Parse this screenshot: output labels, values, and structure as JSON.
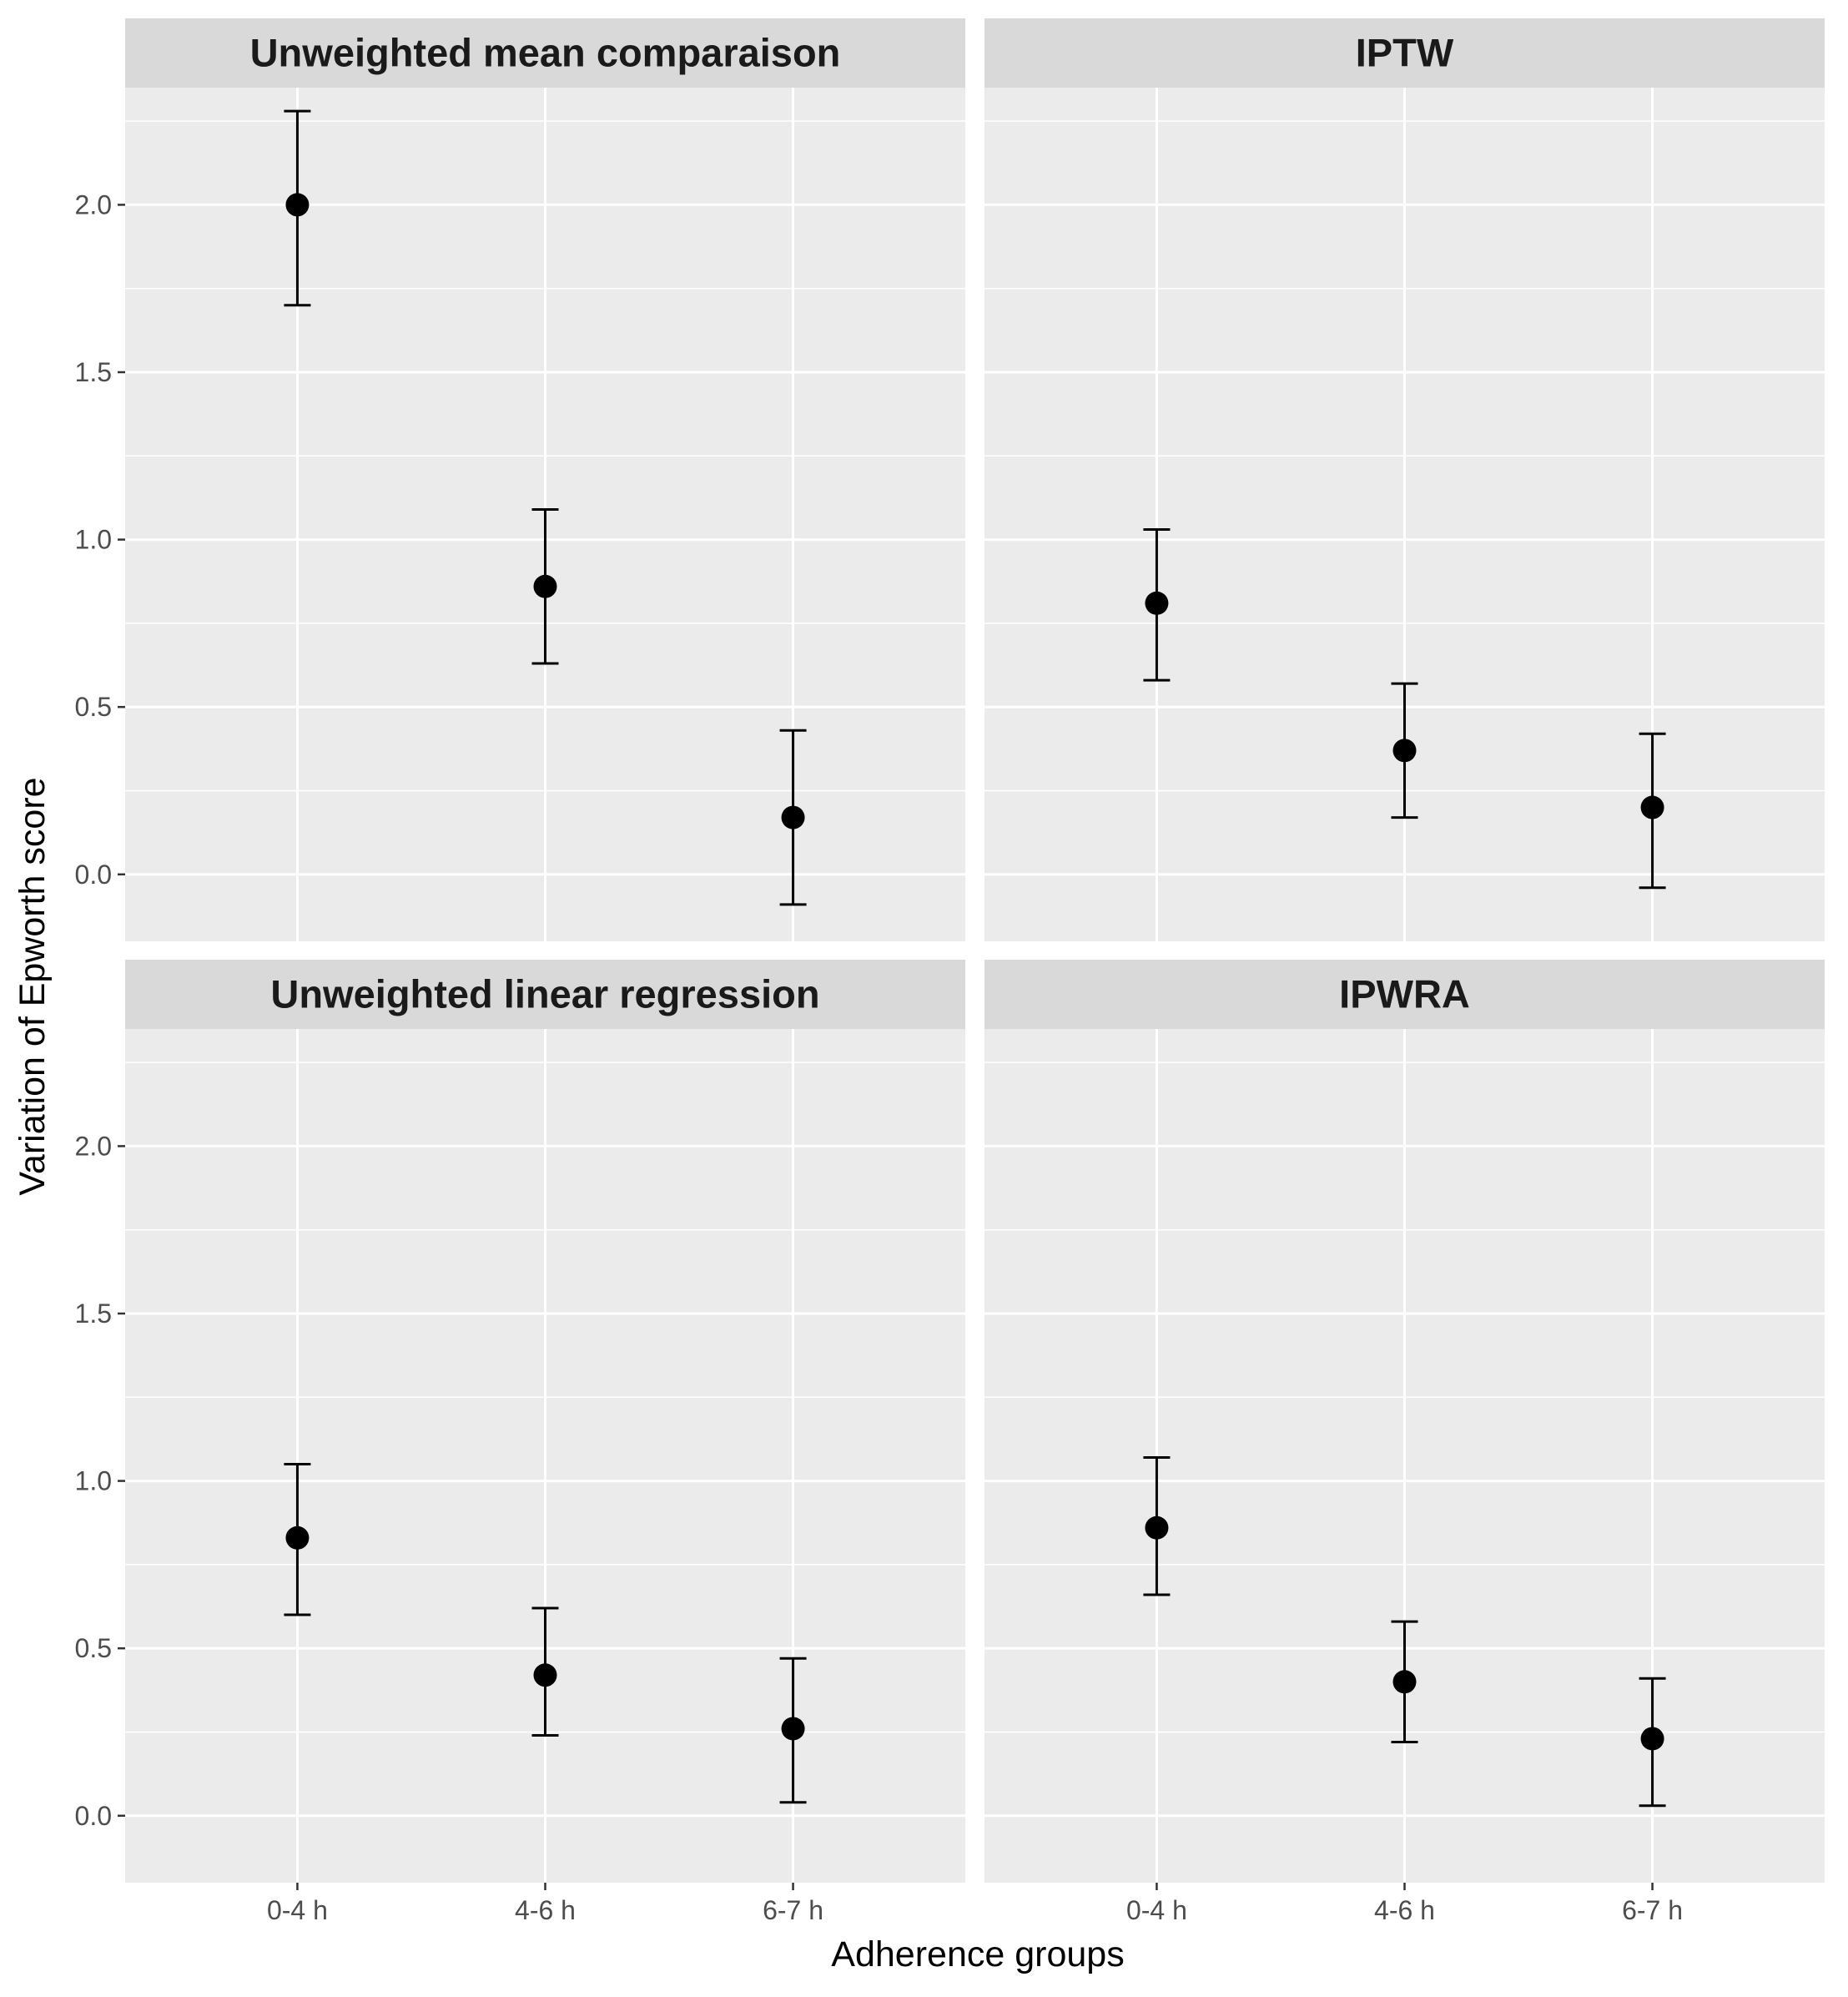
{
  "chart_data": {
    "type": "scatter",
    "subtype": "point-with-errorbars, faceted 2x2",
    "xlabel": "Adherence groups",
    "ylabel": "Variation of Epworth score",
    "categories": [
      "0-4 h",
      "4-6 h",
      "6-7 h"
    ],
    "ylim": [
      -0.2,
      2.35
    ],
    "yticks": [
      "0.0",
      "0.5",
      "1.0",
      "1.5",
      "2.0"
    ],
    "grid": true,
    "legend": "none",
    "colors": {
      "panel_bg": "#ebebeb",
      "strip_bg": "#d9d9d9",
      "grid": "#ffffff",
      "points": "#000000"
    },
    "panels": [
      {
        "title": "Unweighted mean comparaison",
        "points": [
          {
            "x": "0-4 h",
            "y": 2.0,
            "lower": 1.7,
            "upper": 2.28
          },
          {
            "x": "4-6 h",
            "y": 0.86,
            "lower": 0.63,
            "upper": 1.09
          },
          {
            "x": "6-7 h",
            "y": 0.17,
            "lower": -0.09,
            "upper": 0.43
          }
        ]
      },
      {
        "title": "IPTW",
        "points": [
          {
            "x": "0-4 h",
            "y": 0.81,
            "lower": 0.58,
            "upper": 1.03
          },
          {
            "x": "4-6 h",
            "y": 0.37,
            "lower": 0.17,
            "upper": 0.57
          },
          {
            "x": "6-7 h",
            "y": 0.2,
            "lower": -0.04,
            "upper": 0.42
          }
        ]
      },
      {
        "title": "Unweighted linear regression",
        "points": [
          {
            "x": "0-4 h",
            "y": 0.83,
            "lower": 0.6,
            "upper": 1.05
          },
          {
            "x": "4-6 h",
            "y": 0.42,
            "lower": 0.24,
            "upper": 0.62
          },
          {
            "x": "6-7 h",
            "y": 0.26,
            "lower": 0.04,
            "upper": 0.47
          }
        ]
      },
      {
        "title": "IPWRA",
        "points": [
          {
            "x": "0-4 h",
            "y": 0.86,
            "lower": 0.66,
            "upper": 1.07
          },
          {
            "x": "4-6 h",
            "y": 0.4,
            "lower": 0.22,
            "upper": 0.58
          },
          {
            "x": "6-7 h",
            "y": 0.23,
            "lower": 0.03,
            "upper": 0.41
          }
        ]
      }
    ]
  }
}
